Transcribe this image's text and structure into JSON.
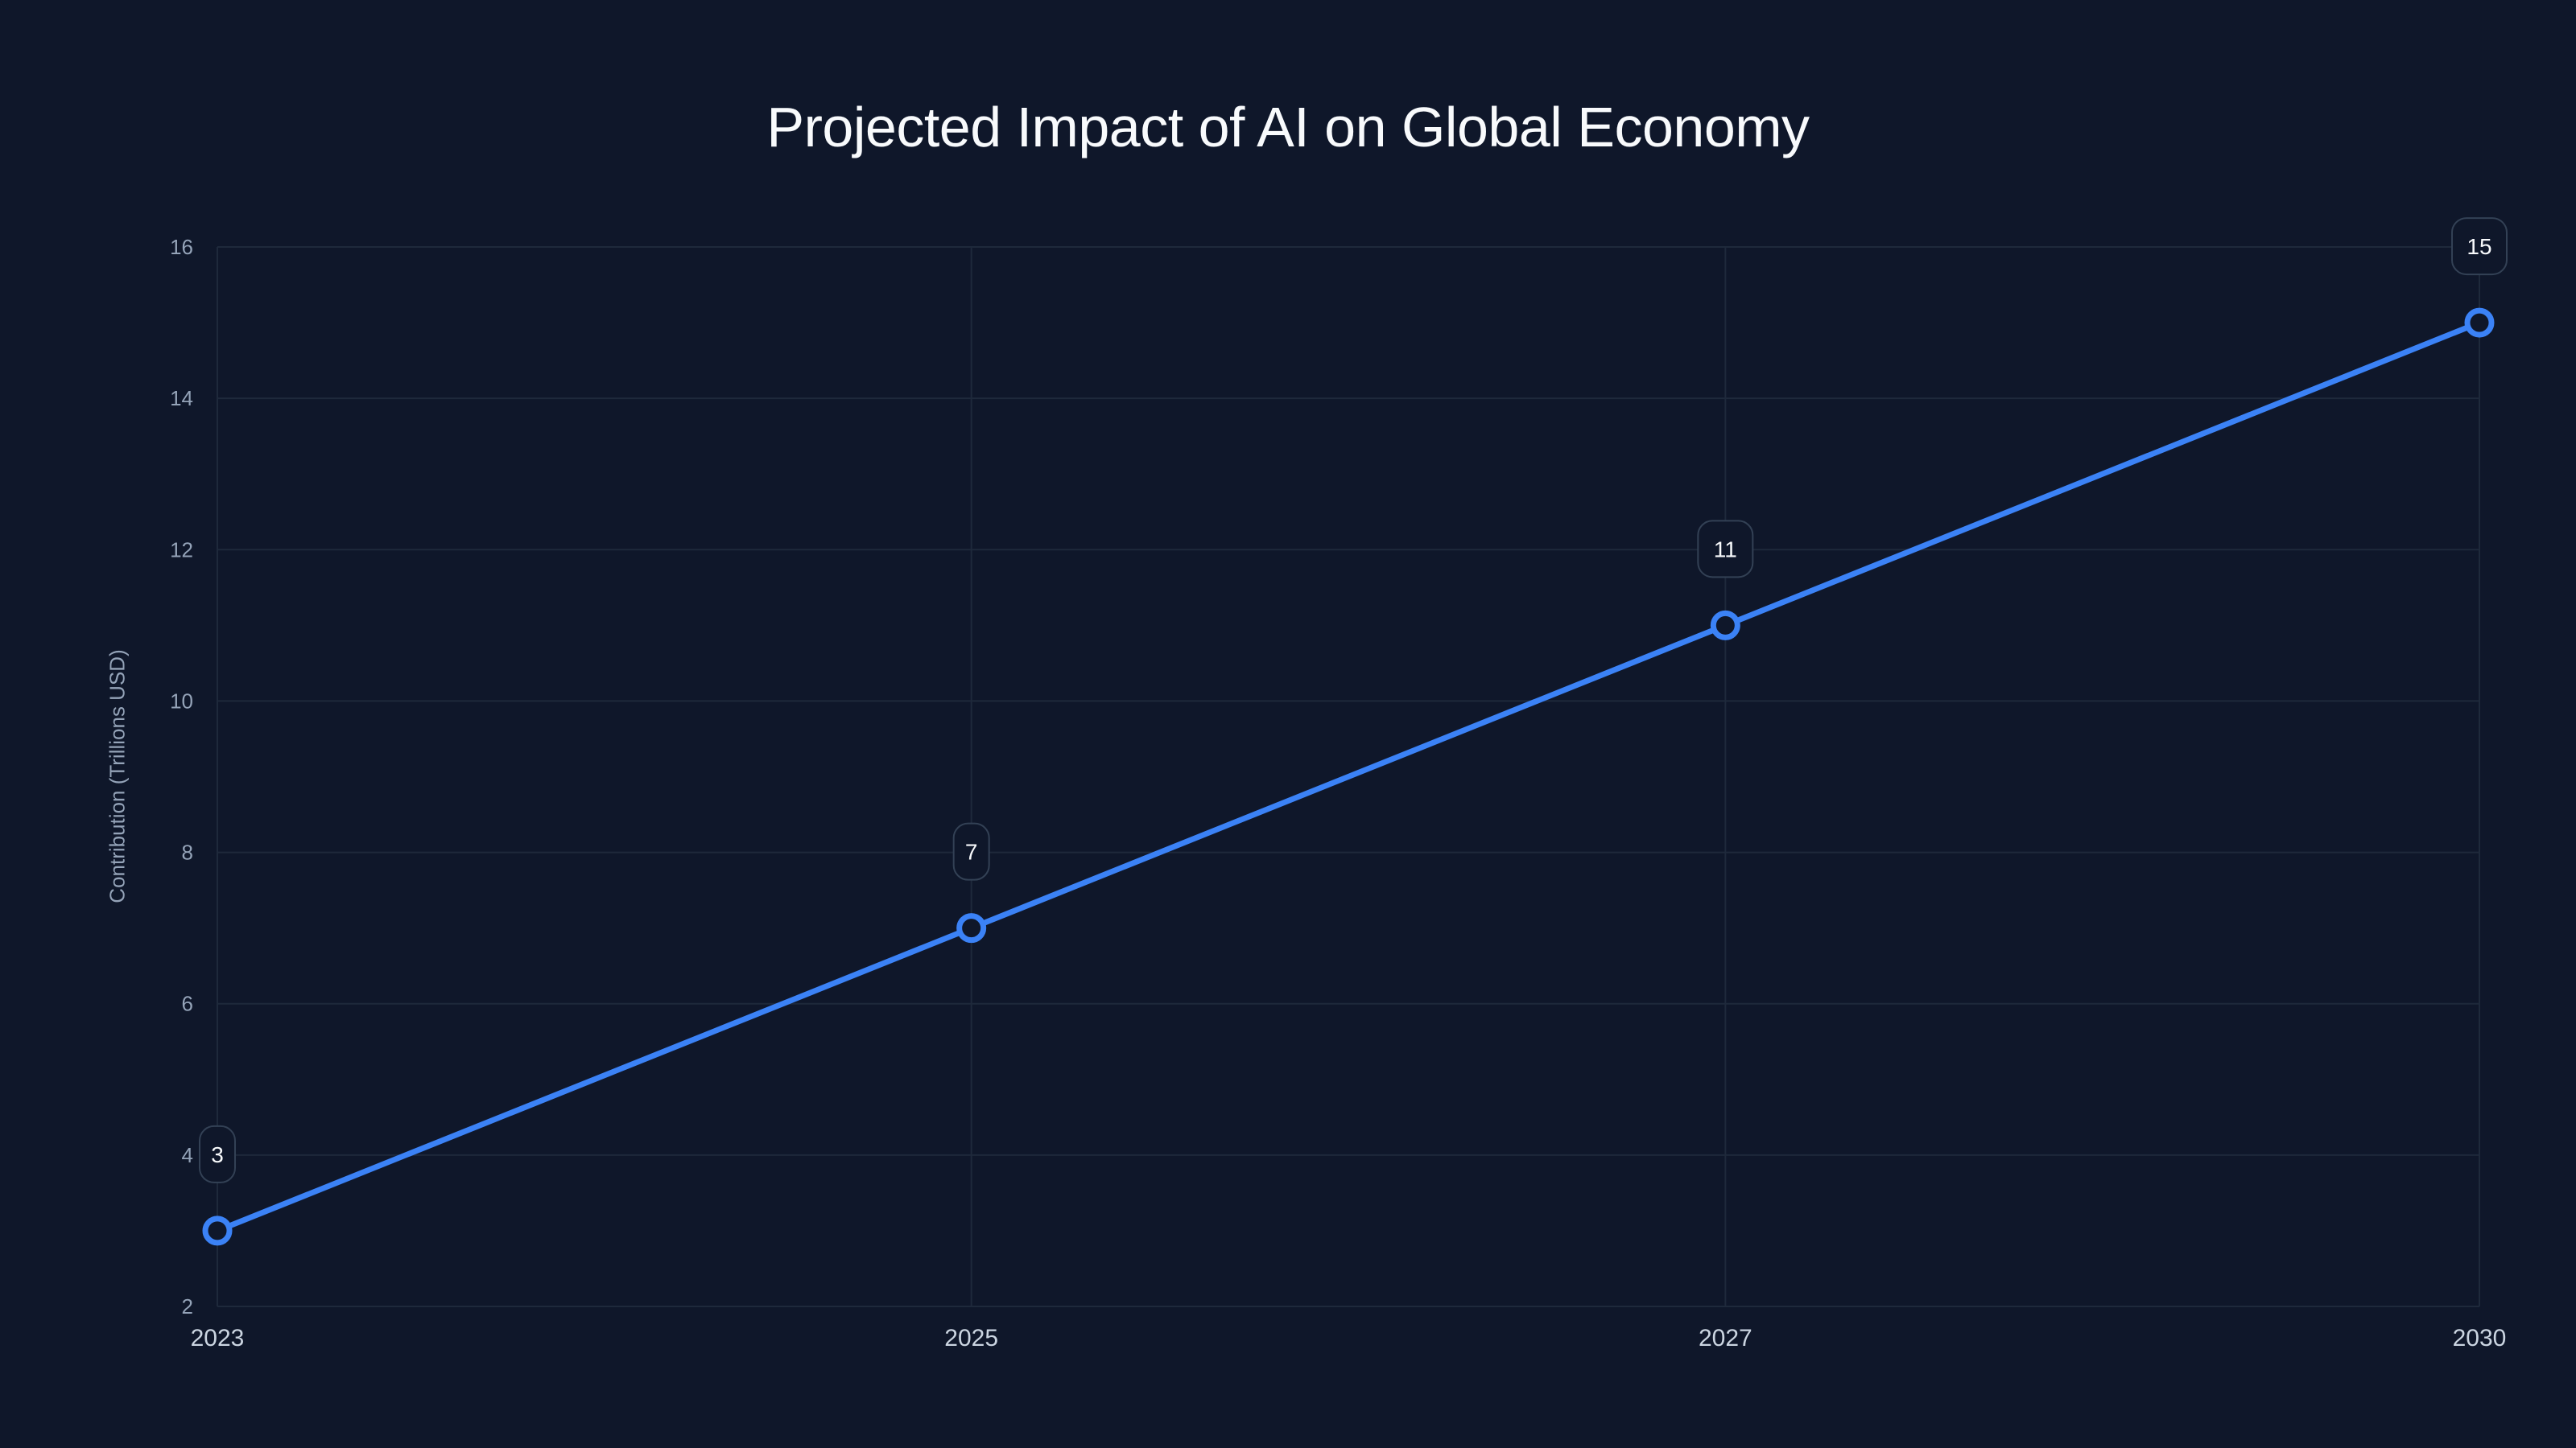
{
  "chart_data": {
    "type": "line",
    "title": "Projected Impact of AI on Global Economy",
    "xlabel": "",
    "ylabel": "Contribution (Trillions USD)",
    "categories": [
      "2023",
      "2025",
      "2027",
      "2030"
    ],
    "series": [
      {
        "name": "Contribution (Trillions USD)",
        "values": [
          3,
          7,
          11,
          15
        ],
        "color": "#3b82f6"
      }
    ],
    "data_labels": [
      "3",
      "7",
      "11",
      "15"
    ],
    "ylim": [
      2,
      16
    ],
    "yticks": [
      2,
      4,
      6,
      8,
      10,
      12,
      14,
      16
    ],
    "grid": true,
    "legend": "none"
  },
  "colors": {
    "background": "#0f172a",
    "line": "#3b82f6",
    "grid": "#1e293b",
    "tick_text": "#94a3b8",
    "x_tick_text": "#cbd5e1",
    "title_text": "#f8fafc",
    "label_box_border": "#334155",
    "label_box_fill": "#0f172a"
  }
}
